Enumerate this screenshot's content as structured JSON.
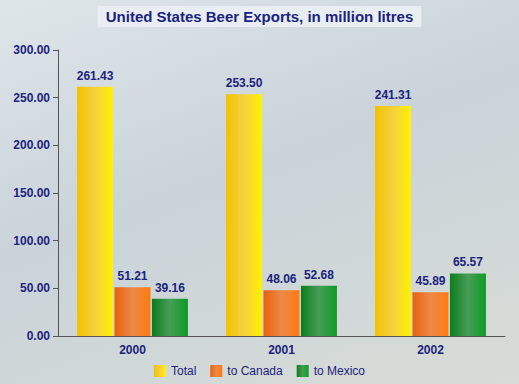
{
  "chart_data": {
    "type": "bar",
    "title": "United States Beer Exports, in million litres",
    "categories": [
      "2000",
      "2001",
      "2002"
    ],
    "series": [
      {
        "name": "Total",
        "color": "#f2c200",
        "values": [
          261.43,
          253.5,
          241.31
        ],
        "value_labels": [
          "261.43",
          "253.50",
          "241.31"
        ]
      },
      {
        "name": "to Canada",
        "color": "#e8620c",
        "values": [
          51.21,
          48.06,
          45.89
        ]
      },
      {
        "name": "to Mexico",
        "color": "#0b7d1e",
        "values": [
          39.16,
          52.68,
          65.57
        ]
      }
    ],
    "ylim": [
      0,
      300
    ],
    "yticks": [
      {
        "value": 0,
        "label": "0.00"
      },
      {
        "value": 50,
        "label": "50.00"
      },
      {
        "value": 100,
        "label": "100.00"
      },
      {
        "value": 150,
        "label": "150.00"
      },
      {
        "value": 200,
        "label": "200.00"
      },
      {
        "value": 250,
        "label": "250.00"
      },
      {
        "value": 300,
        "label": "300.00"
      }
    ],
    "grid": false,
    "legend": "bottom",
    "data_labels": true
  }
}
